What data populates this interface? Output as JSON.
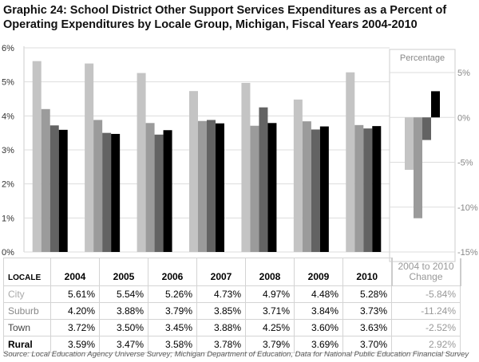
{
  "title": "Graphic 24: School District Other Support Services Expenditures as a Percent of Operating Expenditures by Locale Group, Michigan, Fiscal Years 2004-2010",
  "colors": {
    "City": "#c4c4c4",
    "Suburb": "#9b9b9b",
    "Town": "#636363",
    "Rural": "#000000"
  },
  "chart_data": [
    {
      "type": "bar",
      "categories": [
        "2004",
        "2005",
        "2006",
        "2007",
        "2008",
        "2009",
        "2010"
      ],
      "ylim": [
        0,
        6
      ],
      "yticks": [
        "0%",
        "1%",
        "2%",
        "3%",
        "4%",
        "5%",
        "6%"
      ],
      "grid": true,
      "series": [
        {
          "name": "City",
          "values": [
            5.61,
            5.54,
            5.26,
            4.73,
            4.97,
            4.48,
            5.28
          ]
        },
        {
          "name": "Suburb",
          "values": [
            4.2,
            3.88,
            3.79,
            3.85,
            3.71,
            3.84,
            3.73
          ]
        },
        {
          "name": "Town",
          "values": [
            3.72,
            3.5,
            3.45,
            3.88,
            4.25,
            3.6,
            3.63
          ]
        },
        {
          "name": "Rural",
          "values": [
            3.59,
            3.47,
            3.58,
            3.78,
            3.79,
            3.69,
            3.7
          ]
        }
      ]
    },
    {
      "type": "bar",
      "title": "Percentage",
      "ylim": [
        -15,
        5
      ],
      "yticks": [
        "-15%",
        "-10%",
        "-5%",
        "0%",
        "5%"
      ],
      "grid": true,
      "categories": [
        "City",
        "Suburb",
        "Town",
        "Rural"
      ],
      "values": [
        -5.84,
        -11.24,
        -2.52,
        2.92
      ]
    }
  ],
  "table": {
    "header": [
      "LOCALE",
      "2004",
      "2005",
      "2006",
      "2007",
      "2008",
      "2009",
      "2010",
      "2004 to 2010 Change"
    ],
    "rows": [
      {
        "locale": "City",
        "values": [
          "5.61%",
          "5.54%",
          "5.26%",
          "4.73%",
          "4.97%",
          "4.48%",
          "5.28%"
        ],
        "change": "-5.84%"
      },
      {
        "locale": "Suburb",
        "values": [
          "4.20%",
          "3.88%",
          "3.79%",
          "3.85%",
          "3.71%",
          "3.84%",
          "3.73%"
        ],
        "change": "-11.24%"
      },
      {
        "locale": "Town",
        "values": [
          "3.72%",
          "3.50%",
          "3.45%",
          "3.88%",
          "4.25%",
          "3.60%",
          "3.63%"
        ],
        "change": "-2.52%"
      },
      {
        "locale": "Rural",
        "values": [
          "3.59%",
          "3.47%",
          "3.58%",
          "3.78%",
          "3.79%",
          "3.69%",
          "3.70%"
        ],
        "change": "2.92%"
      }
    ]
  },
  "source": "Source: Local Education Agency Universe Survey; Michigan Department of Education, Data for National Public Education Financial Survey"
}
